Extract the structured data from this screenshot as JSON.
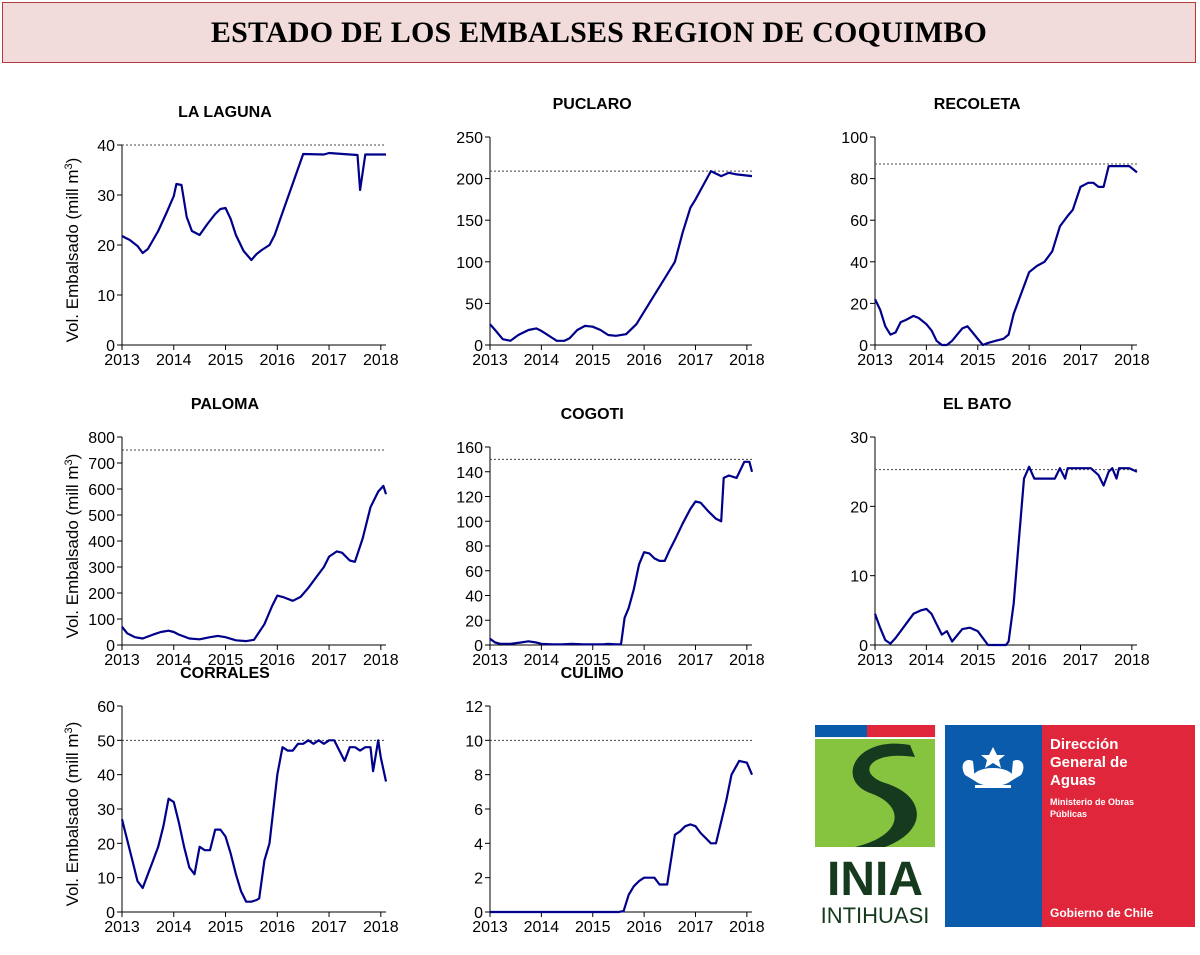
{
  "page_title": "ESTADO DE LOS EMBALSES REGION DE COQUIMBO",
  "y_axis_label": "Vol. Embalsado (mill m",
  "y_axis_label_sup": "3",
  "y_axis_label_end": ")",
  "chart_data": [
    {
      "type": "line",
      "title": "LA LAGUNA",
      "xlim": [
        2013,
        2018.1
      ],
      "ylim": [
        0,
        40
      ],
      "yticks": [
        "0",
        "10",
        "20",
        "30",
        "40"
      ],
      "xticks": [
        "2013",
        "2014",
        "2015",
        "2016",
        "2017",
        "2018"
      ],
      "capacity": 40,
      "line_color": "#00008b",
      "dashed_reference": true,
      "series": [
        {
          "x": [
            2013,
            2013.15,
            2013.3,
            2013.4,
            2013.5,
            2013.7,
            2013.85,
            2014,
            2014.05,
            2014.15,
            2014.25,
            2014.35,
            2014.5,
            2014.65,
            2014.8,
            2014.9,
            2015,
            2015.1,
            2015.2,
            2015.35,
            2015.5,
            2015.6,
            2015.7,
            2015.85,
            2015.95,
            2016.05,
            2016.5,
            2016.9,
            2017,
            2017.4,
            2017.55,
            2017.6,
            2017.7,
            2017.75,
            2018.1
          ],
          "y": [
            21.8,
            21,
            19.8,
            18.4,
            19.2,
            22.8,
            26.2,
            29.8,
            32.2,
            32,
            25.6,
            22.8,
            22,
            24.2,
            26.2,
            27.2,
            27.4,
            25.2,
            22,
            18.8,
            17,
            18.2,
            19,
            20,
            22,
            25,
            38.2,
            38.1,
            38.4,
            38.1,
            38,
            31,
            38.1,
            38.1,
            38.1
          ]
        }
      ]
    },
    {
      "type": "line",
      "title": "PUCLARO",
      "xlim": [
        2013,
        2018.1
      ],
      "ylim": [
        0,
        250
      ],
      "yticks": [
        "0",
        "50",
        "100",
        "150",
        "200",
        "250"
      ],
      "xticks": [
        "2013",
        "2014",
        "2015",
        "2016",
        "2017",
        "2018"
      ],
      "capacity": 209,
      "line_color": "#00008b",
      "dashed_reference": true,
      "series": [
        {
          "x": [
            2013,
            2013.1,
            2013.25,
            2013.4,
            2013.55,
            2013.75,
            2013.9,
            2014,
            2014.1,
            2014.2,
            2014.3,
            2014.45,
            2014.55,
            2014.7,
            2014.85,
            2015,
            2015.15,
            2015.3,
            2015.45,
            2015.65,
            2015.85,
            2016,
            2016.15,
            2016.35,
            2016.5,
            2016.6,
            2016.75,
            2016.9,
            2017,
            2017.3,
            2017.4,
            2017.5,
            2017.65,
            2017.8,
            2018.1
          ],
          "y": [
            25,
            18,
            7,
            5,
            12,
            18,
            20,
            17,
            13,
            9,
            5,
            5,
            8,
            18,
            23,
            22,
            18,
            12,
            11,
            13,
            25,
            40,
            55,
            75,
            90,
            100,
            135,
            165,
            175,
            209,
            206,
            203,
            207,
            205,
            203
          ]
        }
      ]
    },
    {
      "type": "line",
      "title": "RECOLETA",
      "xlim": [
        2013,
        2018.1
      ],
      "ylim": [
        0,
        100
      ],
      "yticks": [
        "0",
        "20",
        "40",
        "60",
        "80",
        "100"
      ],
      "xticks": [
        "2013",
        "2014",
        "2015",
        "2016",
        "2017",
        "2018"
      ],
      "capacity": 87,
      "line_color": "#00008b",
      "dashed_reference": true,
      "series": [
        {
          "x": [
            2013,
            2013.1,
            2013.2,
            2013.3,
            2013.4,
            2013.5,
            2013.6,
            2013.75,
            2013.85,
            2014,
            2014.1,
            2014.2,
            2014.3,
            2014.4,
            2014.5,
            2014.6,
            2014.7,
            2014.8,
            2014.9,
            2015,
            2015.1,
            2015.2,
            2015.35,
            2015.5,
            2015.6,
            2015.7,
            2015.85,
            2016,
            2016.15,
            2016.3,
            2016.45,
            2016.6,
            2016.75,
            2016.85,
            2017,
            2017.15,
            2017.25,
            2017.35,
            2017.45,
            2017.55,
            2017.75,
            2017.95,
            2018.1
          ],
          "y": [
            22,
            17,
            9,
            5,
            6,
            11,
            12,
            14,
            13,
            10,
            7,
            2,
            0,
            0,
            2,
            5,
            8,
            9,
            6,
            3,
            0,
            1,
            2,
            3,
            5,
            15,
            25,
            35,
            38,
            40,
            45,
            57,
            62,
            65,
            76,
            78,
            78,
            76,
            76,
            86,
            86,
            86,
            83
          ]
        }
      ]
    },
    {
      "type": "line",
      "title": "PALOMA",
      "xlim": [
        2013,
        2018.1
      ],
      "ylim": [
        0,
        800
      ],
      "yticks": [
        "0",
        "100",
        "200",
        "300",
        "400",
        "500",
        "600",
        "700",
        "800"
      ],
      "xticks": [
        "2013",
        "2014",
        "2015",
        "2016",
        "2017",
        "2018"
      ],
      "capacity": 750,
      "line_color": "#00008b",
      "dashed_reference": true,
      "series": [
        {
          "x": [
            2013,
            2013.1,
            2013.25,
            2013.4,
            2013.6,
            2013.75,
            2013.9,
            2014,
            2014.1,
            2014.3,
            2014.5,
            2014.7,
            2014.85,
            2015,
            2015.2,
            2015.4,
            2015.55,
            2015.75,
            2015.9,
            2016,
            2016.1,
            2016.3,
            2016.45,
            2016.6,
            2016.75,
            2016.9,
            2017,
            2017.15,
            2017.25,
            2017.4,
            2017.5,
            2017.65,
            2017.8,
            2017.95,
            2018.05,
            2018.1
          ],
          "y": [
            70,
            45,
            30,
            25,
            40,
            50,
            55,
            50,
            40,
            25,
            22,
            30,
            35,
            30,
            18,
            15,
            20,
            80,
            150,
            190,
            185,
            170,
            185,
            220,
            260,
            300,
            340,
            360,
            355,
            325,
            320,
            410,
            530,
            590,
            612,
            580
          ]
        }
      ]
    },
    {
      "type": "line",
      "title": "COGOTI",
      "xlim": [
        2013,
        2018.1
      ],
      "ylim": [
        0,
        160
      ],
      "yticks": [
        "0",
        "20",
        "40",
        "60",
        "80",
        "100",
        "120",
        "140",
        "160"
      ],
      "xticks": [
        "2013",
        "2014",
        "2015",
        "2016",
        "2017",
        "2018"
      ],
      "capacity": 150,
      "line_color": "#00008b",
      "dashed_reference": true,
      "series": [
        {
          "x": [
            2013,
            2013.1,
            2013.2,
            2013.4,
            2013.6,
            2013.75,
            2013.9,
            2014,
            2014.2,
            2014.4,
            2014.6,
            2014.8,
            2015,
            2015.2,
            2015.3,
            2015.45,
            2015.55,
            2015.62,
            2015.7,
            2015.8,
            2015.9,
            2016,
            2016.1,
            2016.2,
            2016.3,
            2016.4,
            2016.5,
            2016.6,
            2016.75,
            2016.9,
            2017,
            2017.1,
            2017.25,
            2017.4,
            2017.5,
            2017.55,
            2017.65,
            2017.8,
            2017.95,
            2018.05,
            2018.1
          ],
          "y": [
            5,
            2,
            1,
            1,
            2,
            3,
            2,
            1,
            0.5,
            0.5,
            1,
            0.5,
            0.5,
            0.5,
            1,
            0.5,
            0.5,
            22,
            30,
            45,
            65,
            75,
            74,
            70,
            68,
            68,
            77,
            85,
            98,
            110,
            116,
            115,
            108,
            102,
            100,
            135,
            137,
            135,
            148,
            148,
            140
          ]
        }
      ]
    },
    {
      "type": "line",
      "title": "EL BATO",
      "xlim": [
        2013,
        2018.1
      ],
      "ylim": [
        0,
        30
      ],
      "yticks": [
        "0",
        "10",
        "20",
        "30"
      ],
      "xticks": [
        "2013",
        "2014",
        "2015",
        "2016",
        "2017",
        "2018"
      ],
      "capacity": 25.3,
      "line_color": "#00008b",
      "dashed_reference": true,
      "series": [
        {
          "x": [
            2013,
            2013.1,
            2013.2,
            2013.3,
            2013.4,
            2013.5,
            2013.6,
            2013.75,
            2013.9,
            2014,
            2014.1,
            2014.2,
            2014.3,
            2014.4,
            2014.5,
            2014.7,
            2014.85,
            2015,
            2015.1,
            2015.2,
            2015.4,
            2015.55,
            2015.6,
            2015.7,
            2015.8,
            2015.9,
            2016,
            2016.1,
            2016.2,
            2016.5,
            2016.6,
            2016.7,
            2016.75,
            2016.85,
            2017.05,
            2017.2,
            2017.35,
            2017.45,
            2017.55,
            2017.62,
            2017.7,
            2017.75,
            2017.85,
            2017.95,
            2018.1
          ],
          "y": [
            4.5,
            2.5,
            0.7,
            0.2,
            1,
            2,
            3,
            4.5,
            5,
            5.2,
            4.5,
            3,
            1.5,
            2,
            0.5,
            2.3,
            2.5,
            2,
            1,
            0,
            0,
            0,
            0.5,
            6,
            15,
            24,
            25.7,
            24,
            24,
            24,
            25.5,
            24,
            25.5,
            25.5,
            25.5,
            25.5,
            24.5,
            23,
            25,
            25.5,
            24,
            25.5,
            25.5,
            25.5,
            25
          ]
        }
      ]
    },
    {
      "type": "line",
      "title": "CORRALES",
      "xlim": [
        2013,
        2018.1
      ],
      "ylim": [
        0,
        60
      ],
      "yticks": [
        "0",
        "10",
        "20",
        "30",
        "40",
        "50",
        "60"
      ],
      "xticks": [
        "2013",
        "2014",
        "2015",
        "2016",
        "2017",
        "2018"
      ],
      "capacity": 50,
      "line_color": "#00008b",
      "dashed_reference": true,
      "series": [
        {
          "x": [
            2013,
            2013.1,
            2013.2,
            2013.3,
            2013.4,
            2013.5,
            2013.6,
            2013.7,
            2013.8,
            2013.9,
            2014,
            2014.1,
            2014.2,
            2014.3,
            2014.4,
            2014.5,
            2014.6,
            2014.7,
            2014.8,
            2014.9,
            2015,
            2015.1,
            2015.2,
            2015.3,
            2015.4,
            2015.5,
            2015.6,
            2015.65,
            2015.75,
            2015.85,
            2016,
            2016.1,
            2016.2,
            2016.3,
            2016.4,
            2016.5,
            2016.6,
            2016.7,
            2016.8,
            2016.9,
            2017,
            2017.1,
            2017.2,
            2017.3,
            2017.4,
            2017.5,
            2017.6,
            2017.7,
            2017.8,
            2017.85,
            2017.95,
            2018,
            2018.1
          ],
          "y": [
            27,
            21,
            15,
            9,
            7,
            11,
            15,
            19,
            25,
            33,
            32,
            26,
            19,
            13,
            11,
            19,
            18,
            18,
            24,
            24,
            22,
            17,
            11,
            6,
            3,
            3,
            3.5,
            4,
            15,
            20,
            40,
            48,
            47,
            47,
            49,
            49,
            50,
            49,
            50,
            49,
            50,
            50,
            47,
            44,
            48,
            48,
            47,
            48,
            48,
            41,
            50,
            45,
            38
          ]
        }
      ]
    },
    {
      "type": "line",
      "title": "CULIMO",
      "xlim": [
        2013,
        2018.1
      ],
      "ylim": [
        0,
        12
      ],
      "yticks": [
        "0",
        "2",
        "4",
        "6",
        "8",
        "10",
        "12"
      ],
      "xticks": [
        "2013",
        "2014",
        "2015",
        "2016",
        "2017",
        "2018"
      ],
      "capacity": 10,
      "line_color": "#00008b",
      "dashed_reference": true,
      "series": [
        {
          "x": [
            2013,
            2014,
            2015,
            2015.5,
            2015.6,
            2015.7,
            2015.8,
            2015.9,
            2016,
            2016.1,
            2016.2,
            2016.3,
            2016.35,
            2016.45,
            2016.6,
            2016.7,
            2016.8,
            2016.9,
            2017,
            2017.1,
            2017.3,
            2017.4,
            2017.6,
            2017.7,
            2017.85,
            2018,
            2018.1
          ],
          "y": [
            0,
            0,
            0,
            0,
            0.05,
            1,
            1.5,
            1.8,
            2,
            2,
            2,
            1.6,
            1.6,
            1.6,
            4.5,
            4.7,
            5,
            5.1,
            5,
            4.6,
            4,
            4,
            6.5,
            8,
            8.8,
            8.7,
            8
          ]
        }
      ]
    }
  ],
  "logos": {
    "inia_big": "INIA",
    "inia_small": "INTIHUASI",
    "dga_line1": "Dirección",
    "dga_line2": "General de",
    "dga_line3": "Aguas",
    "dga_sub1": "Ministerio de Obras",
    "dga_sub2": "Públicas",
    "dga_gov": "Gobierno de Chile",
    "color_green": "#86c440",
    "color_dark_green": "#163a1e",
    "color_blue": "#0a5bab",
    "color_red": "#e0263a"
  }
}
